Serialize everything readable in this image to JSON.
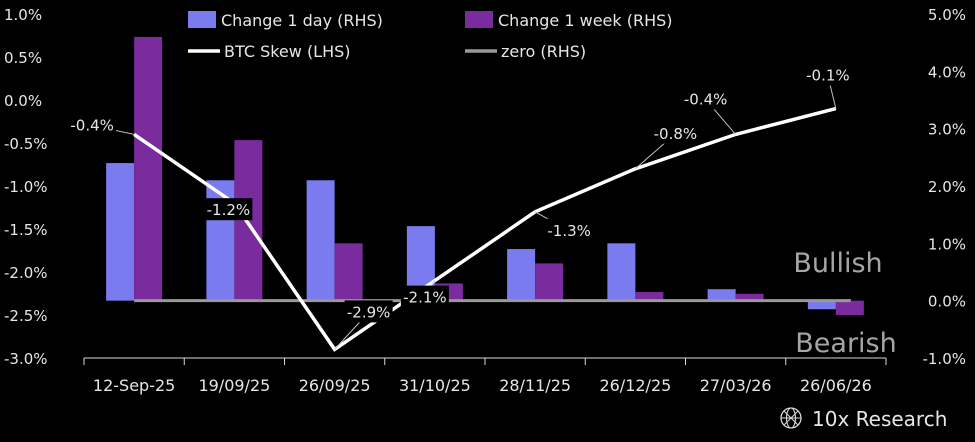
{
  "chart_data": {
    "type": "bar",
    "categories": [
      "12-Sep-25",
      "19/09/25",
      "26/09/25",
      "31/10/25",
      "28/11/25",
      "26/12/25",
      "27/03/26",
      "26/06/26"
    ],
    "series": [
      {
        "name": "Change 1 day (RHS)",
        "type": "bar",
        "axis": "right",
        "color": "#7b7bf0",
        "values": [
          2.4,
          2.1,
          2.1,
          1.3,
          0.9,
          1.0,
          0.2,
          -0.15
        ]
      },
      {
        "name": "Change 1 week (RHS)",
        "type": "bar",
        "axis": "right",
        "color": "#7a2c9e",
        "values": [
          4.6,
          2.8,
          1.0,
          0.3,
          0.65,
          0.15,
          0.12,
          -0.25
        ]
      },
      {
        "name": "BTC Skew (LHS)",
        "type": "line",
        "axis": "left",
        "color": "#ffffff",
        "values": [
          -0.4,
          -1.2,
          -2.9,
          -2.1,
          -1.3,
          -0.8,
          -0.4,
          -0.1
        ]
      },
      {
        "name": "zero (RHS)",
        "type": "line",
        "axis": "right",
        "color": "#999999",
        "values": [
          0,
          0,
          0,
          0,
          0,
          0,
          0,
          0
        ]
      }
    ],
    "left_axis": {
      "min": -3.0,
      "max": 1.0,
      "ticks": [
        "1.0%",
        "0.5%",
        "0.0%",
        "-0.5%",
        "-1.0%",
        "-1.5%",
        "-2.0%",
        "-2.5%",
        "-3.0%"
      ]
    },
    "right_axis": {
      "min": -1.0,
      "max": 5.0,
      "ticks": [
        "5.0%",
        "4.0%",
        "3.0%",
        "2.0%",
        "1.0%",
        "0.0%",
        "-1.0%"
      ]
    },
    "point_labels": [
      "-0.4%",
      "-1.2%",
      "-2.9%",
      "-2.1%",
      "-1.3%",
      "-0.8%",
      "-0.4%",
      "-0.1%"
    ],
    "annotations": {
      "bullish": "Bullish",
      "bearish": "Bearish"
    },
    "legend_position": "top",
    "grid": false
  },
  "brand": {
    "name": "10x Research",
    "icon": "globe-icon"
  }
}
